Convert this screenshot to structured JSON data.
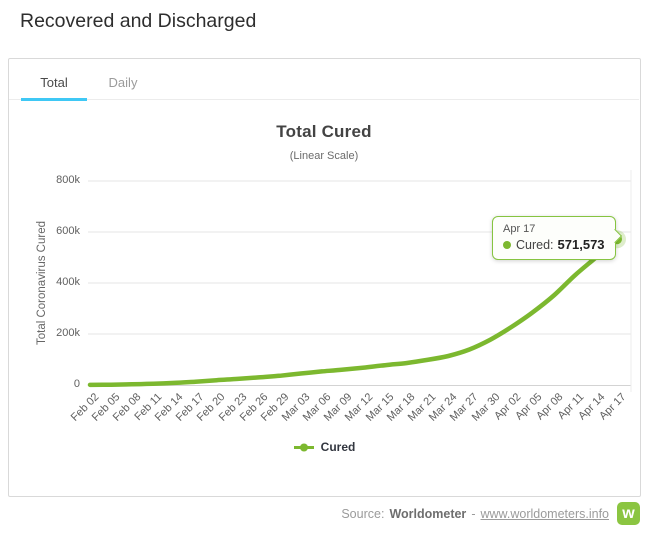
{
  "header": {
    "title": "Recovered and Discharged"
  },
  "tabs": {
    "total": "Total",
    "daily": "Daily"
  },
  "chart_data": {
    "type": "line",
    "title": "Total Cured",
    "subtitle": "(Linear Scale)",
    "ylabel": "Total Coronavirus Cured",
    "xlabel": "",
    "ylim": [
      0,
      800000
    ],
    "grid": true,
    "legend_position": "bottom-center",
    "categories": [
      "Feb 02",
      "Feb 05",
      "Feb 08",
      "Feb 11",
      "Feb 14",
      "Feb 17",
      "Feb 20",
      "Feb 23",
      "Feb 26",
      "Feb 29",
      "Mar 03",
      "Mar 06",
      "Mar 09",
      "Mar 12",
      "Mar 15",
      "Mar 18",
      "Mar 21",
      "Mar 24",
      "Mar 27",
      "Mar 30",
      "Apr 02",
      "Apr 05",
      "Apr 08",
      "Apr 11",
      "Apr 14",
      "Apr 17"
    ],
    "series": [
      {
        "name": "Cured",
        "color": "#7cb82f",
        "values": [
          636,
          1292,
          2616,
          4740,
          8101,
          13120,
          18800,
          24000,
          30000,
          36200,
          45100,
          53200,
          60300,
          68300,
          77800,
          86000,
          98300,
          113800,
          139400,
          178100,
          228000,
          285000,
          351000,
          430000,
          500000,
          571573
        ]
      }
    ],
    "yticks": [
      {
        "v": 0,
        "label": "0"
      },
      {
        "v": 200000,
        "label": "200k"
      },
      {
        "v": 400000,
        "label": "400k"
      },
      {
        "v": 600000,
        "label": "600k"
      },
      {
        "v": 800000,
        "label": "800k"
      }
    ],
    "tooltip": {
      "date": "Apr 17",
      "series": "Cured",
      "value": "571,573"
    }
  },
  "legend": {
    "cured": "Cured"
  },
  "footer": {
    "source_label": "Source:",
    "source_name": "Worldometer",
    "separator": "-",
    "link_text": "www.worldometers.info",
    "logo_letter": "w"
  },
  "colors": {
    "line_green": "#7cb82f",
    "tooltip_border": "#86c440",
    "tab_active_underline": "#3fc8f5",
    "gridline": "#e6e6e6",
    "axis_line": "#d3d3d3",
    "logo_green": "#8bc541"
  }
}
